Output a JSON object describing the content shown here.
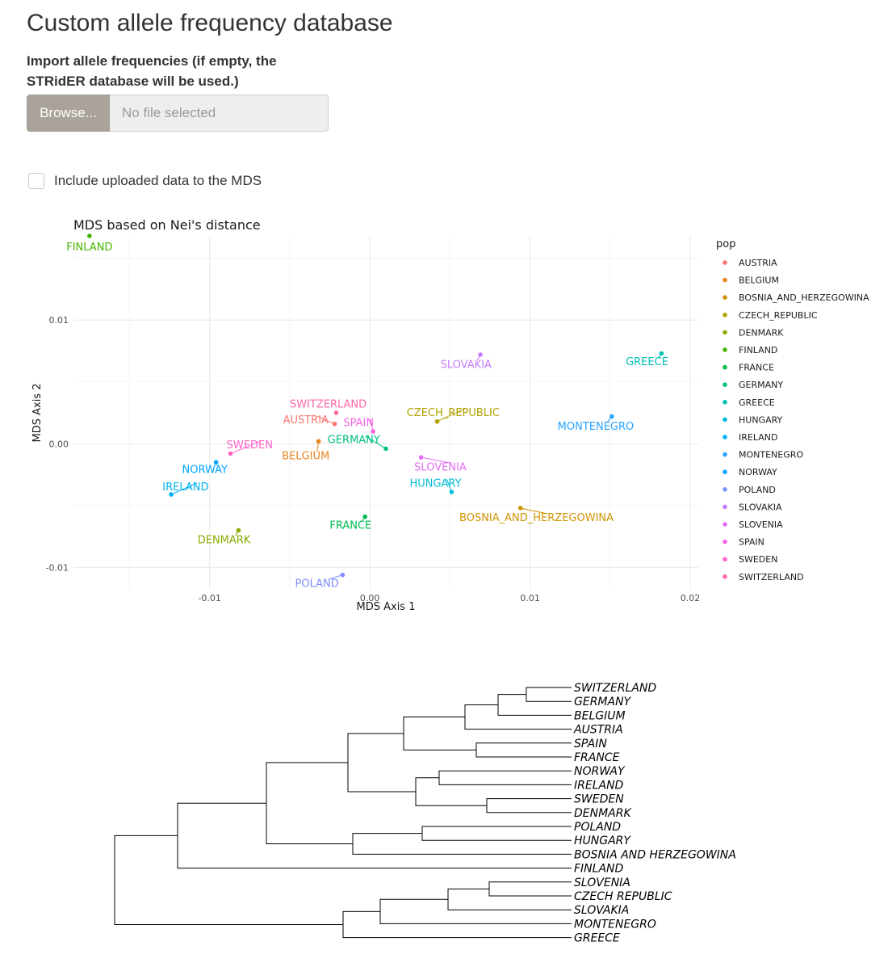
{
  "page": {
    "title": "Custom allele frequency database",
    "import_label": "Import allele frequencies (if empty, the STRidER database will be used.)",
    "browse_label": "Browse...",
    "file_placeholder": "No file selected",
    "include_label": "Include uploaded data to the MDS",
    "include_checked": false
  },
  "chart_data": [
    {
      "type": "scatter",
      "title": "MDS based on Nei's distance",
      "xlabel": "MDS Axis 1",
      "ylabel": "MDS Axis 2",
      "xlim": [
        -0.0185,
        0.0205
      ],
      "ylim": [
        -0.0118,
        0.0168
      ],
      "x_ticks": [
        -0.01,
        0.0,
        0.01,
        0.02
      ],
      "x_tick_labels": [
        "-0.01",
        "0.00",
        "0.01",
        "0.02"
      ],
      "y_ticks": [
        -0.01,
        0.0,
        0.01
      ],
      "y_tick_labels": [
        "-0.01",
        "0.00",
        "0.01"
      ],
      "grid": true,
      "legend_title": "pop",
      "legend_position": "right",
      "points": [
        {
          "name": "AUSTRIA",
          "x": -0.0022,
          "y": 0.0016,
          "color": "#F8766D"
        },
        {
          "name": "BELGIUM",
          "x": -0.0032,
          "y": 0.0002,
          "color": "#E7851E"
        },
        {
          "name": "BOSNIA_AND_HERZEGOWINA",
          "x": 0.0094,
          "y": -0.0052,
          "color": "#D09400"
        },
        {
          "name": "CZECH_REPUBLIC",
          "x": 0.0042,
          "y": 0.0018,
          "color": "#B2A100"
        },
        {
          "name": "DENMARK",
          "x": -0.0082,
          "y": -0.007,
          "color": "#89AC00"
        },
        {
          "name": "FINLAND",
          "x": -0.0175,
          "y": 0.0168,
          "color": "#45B500"
        },
        {
          "name": "FRANCE",
          "x": -0.0003,
          "y": -0.0059,
          "color": "#00BC51"
        },
        {
          "name": "GERMANY",
          "x": 0.001,
          "y": -0.0004,
          "color": "#00C087"
        },
        {
          "name": "GREECE",
          "x": 0.0182,
          "y": 0.0073,
          "color": "#00C0B2"
        },
        {
          "name": "HUNGARY",
          "x": 0.0051,
          "y": -0.0039,
          "color": "#00BCD6"
        },
        {
          "name": "IRELAND",
          "x": -0.0124,
          "y": -0.0041,
          "color": "#00B3F2"
        },
        {
          "name": "MONTENEGRO",
          "x": 0.0151,
          "y": 0.0022,
          "color": "#29A3FF"
        },
        {
          "name": "NORWAY",
          "x": -0.0096,
          "y": -0.0015,
          "color": "#00A5FF"
        },
        {
          "name": "POLAND",
          "x": -0.0017,
          "y": -0.0106,
          "color": "#7E8FFF"
        },
        {
          "name": "SLOVAKIA",
          "x": 0.0069,
          "y": 0.0072,
          "color": "#C77CFF"
        },
        {
          "name": "SLOVENIA",
          "x": 0.0032,
          "y": -0.0011,
          "color": "#E46EF6"
        },
        {
          "name": "SPAIN",
          "x": 0.0002,
          "y": 0.001,
          "color": "#F565E3"
        },
        {
          "name": "SWEDEN",
          "x": -0.0087,
          "y": -0.0008,
          "color": "#FE63C9"
        },
        {
          "name": "SWITZERLAND",
          "x": -0.0021,
          "y": 0.0025,
          "color": "#FF66A8"
        }
      ],
      "point_labels": [
        {
          "name": "AUSTRIA",
          "x": -0.004,
          "y": 0.0019
        },
        {
          "name": "BELGIUM",
          "x": -0.004,
          "y": -0.001
        },
        {
          "name": "BOSNIA_AND_HERZEGOWINA",
          "x": 0.0104,
          "y": -0.006
        },
        {
          "name": "CZECH_REPUBLIC",
          "x": 0.0052,
          "y": 0.0025
        },
        {
          "name": "DENMARK",
          "x": -0.0091,
          "y": -0.0078
        },
        {
          "name": "FINLAND",
          "x": -0.0175,
          "y": 0.0159
        },
        {
          "name": "FRANCE",
          "x": -0.0012,
          "y": -0.0066
        },
        {
          "name": "GERMANY",
          "x": -0.001,
          "y": 0.0003
        },
        {
          "name": "GREECE",
          "x": 0.0173,
          "y": 0.0066
        },
        {
          "name": "HUNGARY",
          "x": 0.0041,
          "y": -0.0032
        },
        {
          "name": "IRELAND",
          "x": -0.0115,
          "y": -0.0035
        },
        {
          "name": "MONTENEGRO",
          "x": 0.0141,
          "y": 0.0014
        },
        {
          "name": "NORWAY",
          "x": -0.0103,
          "y": -0.0021
        },
        {
          "name": "POLAND",
          "x": -0.0033,
          "y": -0.0113
        },
        {
          "name": "SLOVAKIA",
          "x": 0.006,
          "y": 0.0064
        },
        {
          "name": "SLOVENIA",
          "x": 0.0044,
          "y": -0.0019
        },
        {
          "name": "SPAIN",
          "x": -0.0007,
          "y": 0.0017
        },
        {
          "name": "SWEDEN",
          "x": -0.0075,
          "y": -0.0001
        },
        {
          "name": "SWITZERLAND",
          "x": -0.0026,
          "y": 0.0032
        }
      ]
    },
    {
      "type": "dendrogram",
      "leaves": [
        "SWITZERLAND",
        "GERMANY",
        "BELGIUM",
        "AUSTRIA",
        "SPAIN",
        "FRANCE",
        "NORWAY",
        "IRELAND",
        "SWEDEN",
        "DENMARK",
        "POLAND",
        "HUNGARY",
        "BOSNIA AND HERZEGOWINA",
        "FINLAND",
        "SLOVENIA",
        "CZECH REPUBLIC",
        "SLOVAKIA",
        "MONTENEGRO",
        "GREECE"
      ],
      "tree": [
        [
          [
            [
              [
                [
                  [
                    [
                      0,
                      1
                    ],
                    2
                  ],
                  3
                ],
                [
                  4,
                  5
                ]
              ],
              [
                [
                  6,
                  7
                ],
                [
                  8,
                  9
                ]
              ]
            ],
            [
              [
                10,
                11
              ],
              12
            ]
          ],
          13
        ],
        [
          [
            [
              [
                14,
                15
              ],
              16
            ],
            17
          ],
          18
        ]
      ]
    }
  ]
}
